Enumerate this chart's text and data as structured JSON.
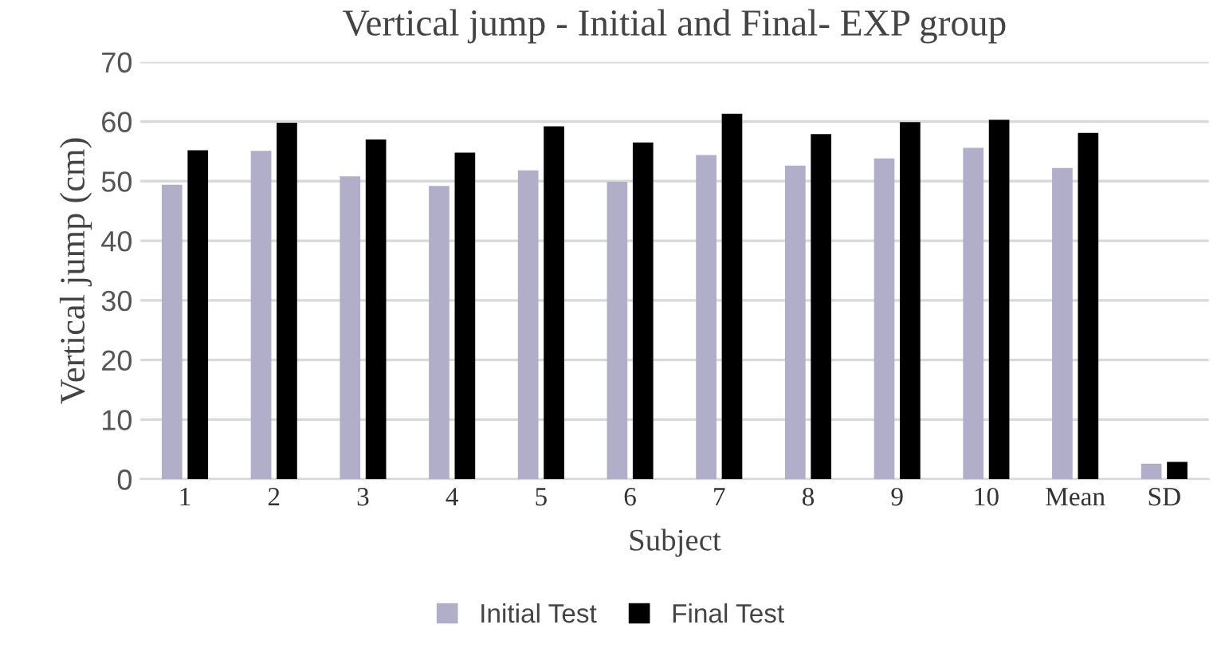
{
  "chart_data": {
    "type": "bar",
    "title": "Vertical jump - Initial and Final- EXP group",
    "xlabel": "Subject",
    "ylabel": "Vertical jump (cm)",
    "categories": [
      "1",
      "2",
      "3",
      "4",
      "5",
      "6",
      "7",
      "8",
      "9",
      "10",
      "Mean",
      "SD"
    ],
    "series": [
      {
        "name": "Initial Test",
        "color": "#b0aec8",
        "values": [
          49.4,
          55.1,
          50.8,
          49.2,
          51.8,
          49.9,
          54.4,
          52.6,
          53.8,
          55.6,
          52.2,
          2.6
        ]
      },
      {
        "name": "Final Test",
        "color": "#000000",
        "values": [
          55.2,
          59.8,
          57.0,
          54.8,
          59.2,
          56.5,
          61.3,
          57.9,
          59.9,
          60.3,
          58.1,
          2.9
        ]
      }
    ],
    "ylim": [
      0,
      70
    ],
    "yticks": [
      0,
      10,
      20,
      30,
      40,
      50,
      60,
      70
    ],
    "grid": "y",
    "legend": "bottom"
  }
}
